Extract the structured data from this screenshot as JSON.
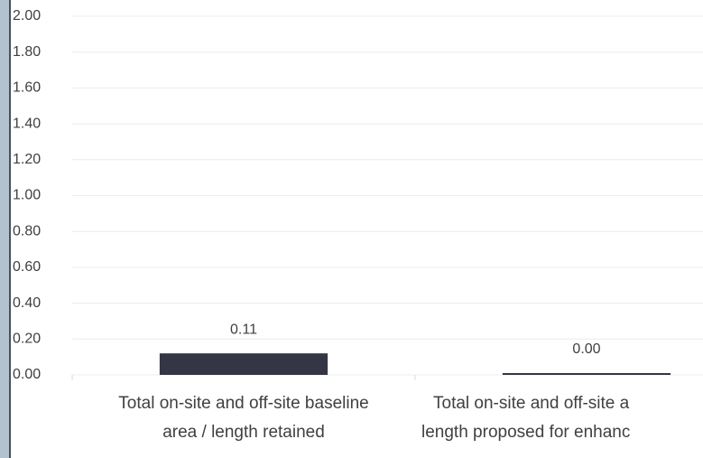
{
  "chart_data": {
    "type": "bar",
    "categories": [
      [
        "Total on-site and off-site baseline",
        "area / length retained"
      ],
      [
        "Total on-site and off-site a",
        "length proposed for enhanc"
      ]
    ],
    "values": [
      0.11,
      0.0
    ],
    "value_labels": [
      "0.11",
      "0.00"
    ],
    "color": "#343645",
    "ylim": [
      0,
      2
    ],
    "yticks": [
      {
        "value": 0,
        "label": "0.00"
      },
      {
        "value": 0.2,
        "label": "0.20"
      },
      {
        "value": 0.4,
        "label": "0.40"
      },
      {
        "value": 0.6,
        "label": "0.60"
      },
      {
        "value": 0.8,
        "label": "0.80"
      },
      {
        "value": 1,
        "label": "1.00"
      },
      {
        "value": 1.2,
        "label": "1.20"
      },
      {
        "value": 1.4,
        "label": "1.40"
      },
      {
        "value": 1.6,
        "label": "1.60"
      },
      {
        "value": 1.8,
        "label": "1.80"
      },
      {
        "value": 2,
        "label": "2.00"
      }
    ],
    "grid": true
  }
}
